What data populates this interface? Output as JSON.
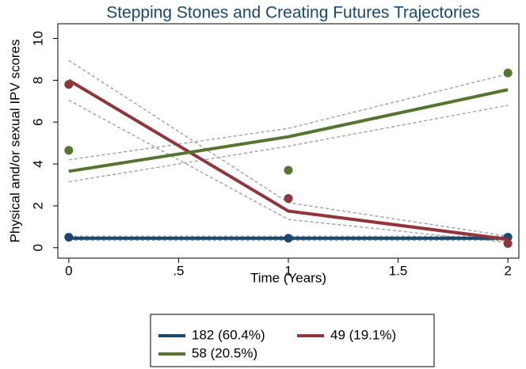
{
  "chart_data": {
    "type": "line",
    "title": "Stepping Stones and Creating Futures Trajectories",
    "x_label": "Time (Years)",
    "y_label": "Physical and/or sexual IPV scores",
    "x": [
      0,
      1,
      2
    ],
    "xlim": [
      -0.05,
      2.05
    ],
    "xticks": [
      0,
      {
        "value": 0.5,
        "label": ".5"
      },
      1,
      {
        "value": 1.5,
        "label": "1.5"
      },
      2
    ],
    "ylim": [
      -0.5,
      10.7
    ],
    "yticks": [
      0,
      2,
      4,
      6,
      8,
      10
    ],
    "ci_color": "#9a9a9a",
    "legend": "bottom",
    "series": [
      {
        "name": "182 (60.4%)",
        "color": "#1a476f",
        "values": [
          0.45,
          0.45,
          0.45
        ],
        "observed": [
          0.5,
          0.45,
          0.5
        ],
        "ci_upper": [
          0.55,
          0.55,
          0.55
        ],
        "ci_lower": [
          0.35,
          0.35,
          0.35
        ]
      },
      {
        "name": "49 (19.1%)",
        "color": "#90353b",
        "values": [
          8.0,
          1.75,
          0.4
        ],
        "observed": [
          7.8,
          2.35,
          0.2
        ],
        "ci_upper": [
          8.95,
          2.15,
          0.55
        ],
        "ci_lower": [
          7.05,
          1.35,
          0.25
        ]
      },
      {
        "name": "58 (20.5%)",
        "color": "#55752f",
        "values": [
          3.65,
          5.3,
          7.55
        ],
        "observed": [
          4.65,
          3.7,
          8.35
        ],
        "ci_upper": [
          4.2,
          5.7,
          8.3
        ],
        "ci_lower": [
          3.15,
          4.85,
          6.8
        ]
      }
    ]
  }
}
